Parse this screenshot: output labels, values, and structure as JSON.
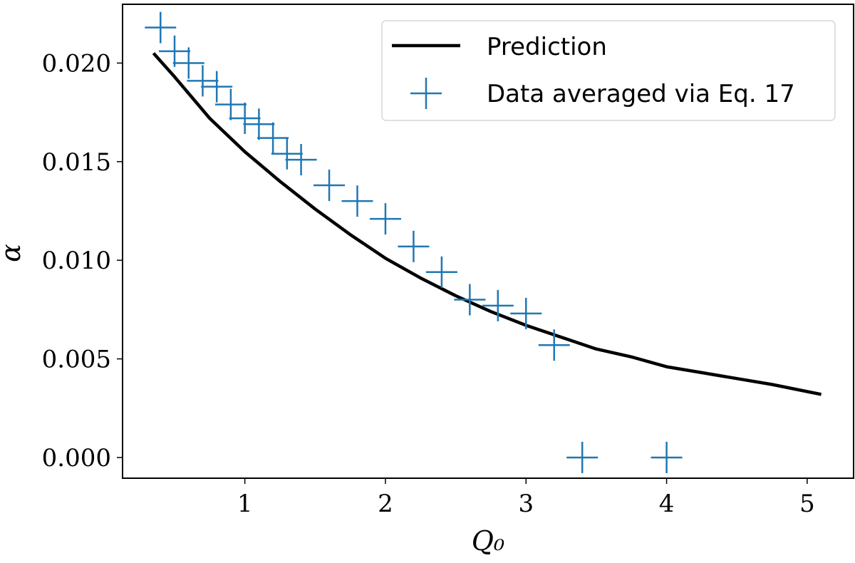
{
  "chart_data": {
    "type": "scatter",
    "title": "",
    "xlabel": "Q₀",
    "ylabel": "α",
    "xlim": [
      0.13,
      5.33
    ],
    "ylim": [
      -0.00105,
      0.02298
    ],
    "x_ticks": [
      {
        "value": 1,
        "label": "1"
      },
      {
        "value": 2,
        "label": "2"
      },
      {
        "value": 3,
        "label": "3"
      },
      {
        "value": 4,
        "label": "4"
      },
      {
        "value": 5,
        "label": "5"
      }
    ],
    "y_ticks": [
      {
        "value": 0.0,
        "label": "0.000"
      },
      {
        "value": 0.005,
        "label": "0.005"
      },
      {
        "value": 0.01,
        "label": "0.010"
      },
      {
        "value": 0.015,
        "label": "0.015"
      },
      {
        "value": 0.02,
        "label": "0.020"
      }
    ],
    "grid": false,
    "legend_position": "top-right",
    "series": [
      {
        "name": "Prediction",
        "kind": "line",
        "color": "#000000",
        "x": [
          0.35,
          0.5,
          0.75,
          1.0,
          1.25,
          1.5,
          1.75,
          2.0,
          2.25,
          2.5,
          2.75,
          3.0,
          3.25,
          3.5,
          3.75,
          4.0,
          4.25,
          4.5,
          4.75,
          5.1
        ],
        "y": [
          0.0205,
          0.0193,
          0.0172,
          0.0155,
          0.014,
          0.0126,
          0.0113,
          0.0101,
          0.0091,
          0.0082,
          0.0074,
          0.0067,
          0.0061,
          0.0055,
          0.0051,
          0.0046,
          0.0043,
          0.004,
          0.0037,
          0.0032
        ]
      },
      {
        "name": "Data averaged via Eq. 17",
        "kind": "marker",
        "marker": "plus",
        "color": "#1f77b4",
        "x": [
          0.4,
          0.5,
          0.6,
          0.7,
          0.8,
          0.9,
          1.0,
          1.1,
          1.2,
          1.3,
          1.4,
          1.6,
          1.8,
          2.0,
          2.2,
          2.4,
          2.6,
          2.8,
          3.0,
          3.2,
          3.4,
          4.0
        ],
        "y": [
          0.0218,
          0.0206,
          0.02,
          0.0191,
          0.0188,
          0.0179,
          0.0172,
          0.0169,
          0.0162,
          0.0154,
          0.0151,
          0.0138,
          0.013,
          0.0121,
          0.0107,
          0.0094,
          0.008,
          0.0077,
          0.0073,
          0.0057,
          0.0,
          0.0
        ]
      }
    ]
  }
}
